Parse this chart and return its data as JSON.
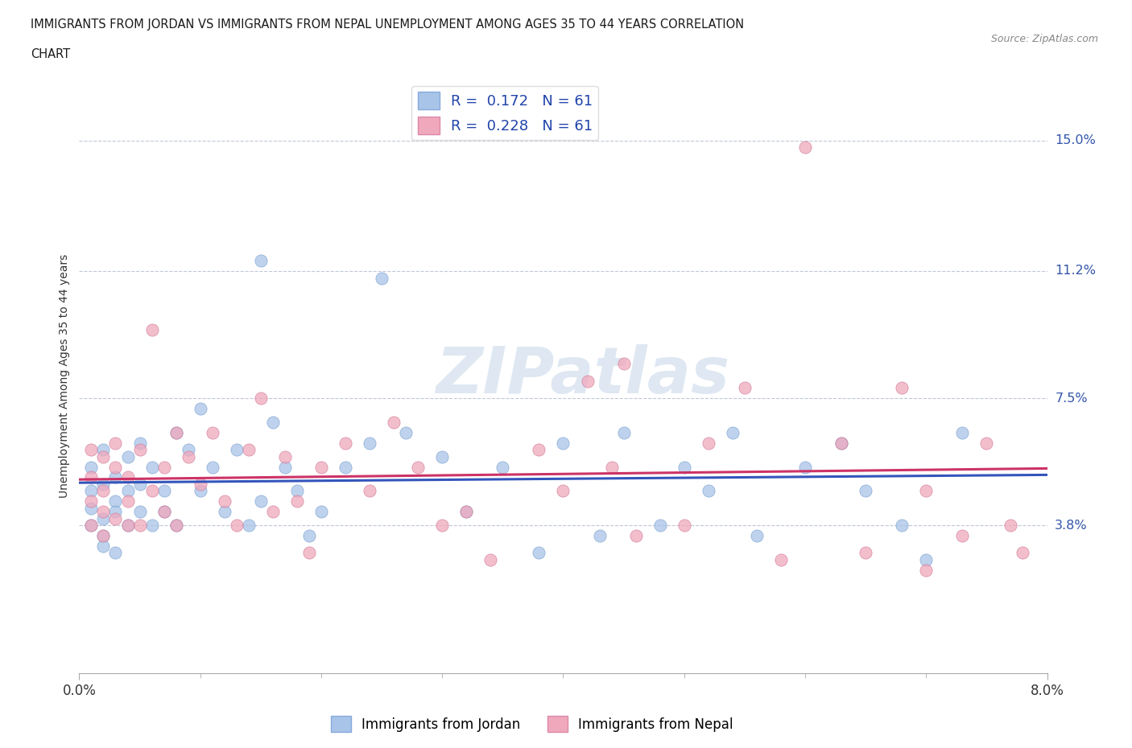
{
  "title_line1": "IMMIGRANTS FROM JORDAN VS IMMIGRANTS FROM NEPAL UNEMPLOYMENT AMONG AGES 35 TO 44 YEARS CORRELATION",
  "title_line2": "CHART",
  "source": "Source: ZipAtlas.com",
  "ylabel": "Unemployment Among Ages 35 to 44 years",
  "xlim": [
    0.0,
    0.08
  ],
  "ylim": [
    -0.005,
    0.168
  ],
  "ytick_labels": [
    "3.8%",
    "7.5%",
    "11.2%",
    "15.0%"
  ],
  "ytick_values": [
    0.038,
    0.075,
    0.112,
    0.15
  ],
  "jordan_color": "#a8c4e8",
  "nepal_color": "#f0a8bc",
  "jordan_line_color": "#3355bb",
  "nepal_line_color": "#cc3366",
  "jordan_R": 0.172,
  "jordan_N": 61,
  "nepal_R": 0.228,
  "nepal_N": 61,
  "watermark": "ZIPatlas",
  "watermark_color": "#c8d8ea",
  "jordan_x": [
    0.001,
    0.001,
    0.001,
    0.001,
    0.002,
    0.002,
    0.002,
    0.002,
    0.002,
    0.003,
    0.003,
    0.003,
    0.003,
    0.004,
    0.004,
    0.004,
    0.005,
    0.005,
    0.005,
    0.006,
    0.006,
    0.007,
    0.007,
    0.008,
    0.008,
    0.009,
    0.01,
    0.01,
    0.011,
    0.012,
    0.013,
    0.014,
    0.015,
    0.016,
    0.017,
    0.018,
    0.019,
    0.02,
    0.022,
    0.024,
    0.025,
    0.027,
    0.03,
    0.032,
    0.035,
    0.038,
    0.04,
    0.043,
    0.045,
    0.048,
    0.05,
    0.052,
    0.054,
    0.056,
    0.06,
    0.063,
    0.065,
    0.068,
    0.07,
    0.073,
    0.015
  ],
  "jordan_y": [
    0.048,
    0.055,
    0.043,
    0.038,
    0.05,
    0.035,
    0.04,
    0.06,
    0.032,
    0.045,
    0.042,
    0.052,
    0.03,
    0.048,
    0.038,
    0.058,
    0.05,
    0.042,
    0.062,
    0.038,
    0.055,
    0.048,
    0.042,
    0.065,
    0.038,
    0.06,
    0.072,
    0.048,
    0.055,
    0.042,
    0.06,
    0.038,
    0.045,
    0.068,
    0.055,
    0.048,
    0.035,
    0.042,
    0.055,
    0.062,
    0.11,
    0.065,
    0.058,
    0.042,
    0.055,
    0.03,
    0.062,
    0.035,
    0.065,
    0.038,
    0.055,
    0.048,
    0.065,
    0.035,
    0.055,
    0.062,
    0.048,
    0.038,
    0.028,
    0.065,
    0.115
  ],
  "nepal_x": [
    0.001,
    0.001,
    0.001,
    0.001,
    0.002,
    0.002,
    0.002,
    0.002,
    0.003,
    0.003,
    0.003,
    0.004,
    0.004,
    0.004,
    0.005,
    0.005,
    0.006,
    0.006,
    0.007,
    0.007,
    0.008,
    0.008,
    0.009,
    0.01,
    0.011,
    0.012,
    0.013,
    0.014,
    0.015,
    0.016,
    0.017,
    0.018,
    0.019,
    0.02,
    0.022,
    0.024,
    0.026,
    0.028,
    0.03,
    0.032,
    0.034,
    0.038,
    0.04,
    0.042,
    0.044,
    0.046,
    0.05,
    0.052,
    0.055,
    0.06,
    0.063,
    0.065,
    0.068,
    0.07,
    0.073,
    0.075,
    0.077,
    0.078,
    0.07,
    0.058,
    0.045
  ],
  "nepal_y": [
    0.052,
    0.038,
    0.06,
    0.045,
    0.042,
    0.058,
    0.035,
    0.048,
    0.055,
    0.04,
    0.062,
    0.038,
    0.052,
    0.045,
    0.06,
    0.038,
    0.095,
    0.048,
    0.055,
    0.042,
    0.065,
    0.038,
    0.058,
    0.05,
    0.065,
    0.045,
    0.038,
    0.06,
    0.075,
    0.042,
    0.058,
    0.045,
    0.03,
    0.055,
    0.062,
    0.048,
    0.068,
    0.055,
    0.038,
    0.042,
    0.028,
    0.06,
    0.048,
    0.08,
    0.055,
    0.035,
    0.038,
    0.062,
    0.078,
    0.148,
    0.062,
    0.03,
    0.078,
    0.025,
    0.035,
    0.062,
    0.038,
    0.03,
    0.048,
    0.028,
    0.085
  ]
}
